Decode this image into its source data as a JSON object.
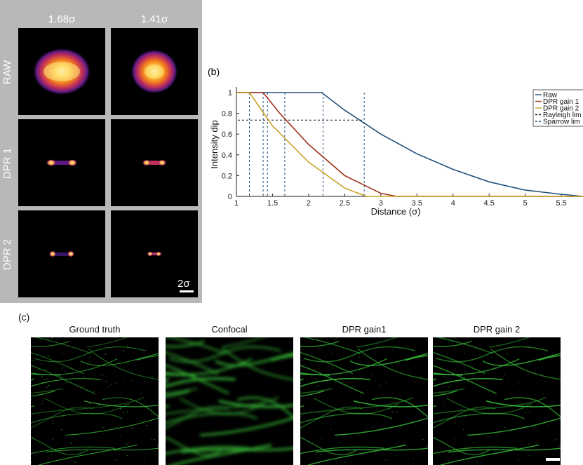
{
  "panel_a": {
    "columns": [
      "1.68σ",
      "1.41σ"
    ],
    "rows": [
      "RAW",
      "DPR 1",
      "DPR 2"
    ],
    "scale_label": "2σ"
  },
  "panel_b": {
    "label": "(b)",
    "legend": [
      "Raw",
      "DPR gain 1",
      "DPR gain 2",
      "Rayleigh lim",
      "Sparrow lim"
    ]
  },
  "panel_c": {
    "label": "(c)",
    "titles": [
      "Ground truth",
      "Confocal",
      "DPR gain1",
      "DPR gain 2"
    ]
  },
  "colors": {
    "raw": "#1f4e79",
    "dpr_gain_1": "#a0321e",
    "dpr_gain_2": "#c9a227",
    "limit_lines": "#1f4e79",
    "filament": "#39c43a"
  },
  "chart_data": {
    "type": "line",
    "xlabel": "Distance (σ)",
    "ylabel": "Intensity dip",
    "xlim": [
      1,
      5.8
    ],
    "ylim": [
      0,
      1
    ],
    "xticks": [
      1,
      1.5,
      2,
      2.5,
      3,
      3.5,
      4,
      4.5,
      5,
      5.5
    ],
    "yticks": [
      0,
      0.2,
      0.4,
      0.6,
      0.8,
      1
    ],
    "legend_position": "top-right",
    "series": [
      {
        "name": "Raw",
        "x": [
          1,
          2.18,
          2.5,
          3,
          3.5,
          4,
          4.5,
          5,
          5.5,
          5.8
        ],
        "y": [
          1,
          1,
          0.83,
          0.6,
          0.41,
          0.26,
          0.14,
          0.06,
          0.02,
          0
        ]
      },
      {
        "name": "DPR gain 1",
        "x": [
          1,
          1.37,
          1.6,
          2,
          2.5,
          3,
          3.22,
          5.8
        ],
        "y": [
          1,
          1,
          0.8,
          0.5,
          0.2,
          0.03,
          0,
          0
        ]
      },
      {
        "name": "DPR gain 2",
        "x": [
          1,
          1.18,
          1.5,
          2,
          2.5,
          2.8,
          5.8
        ],
        "y": [
          1,
          1,
          0.68,
          0.33,
          0.08,
          0,
          0
        ]
      }
    ],
    "reference_lines": {
      "horizontal_y": 0.735,
      "vertical_x": [
        1.18,
        1.37,
        1.43,
        1.67,
        2.2,
        2.77
      ]
    }
  }
}
